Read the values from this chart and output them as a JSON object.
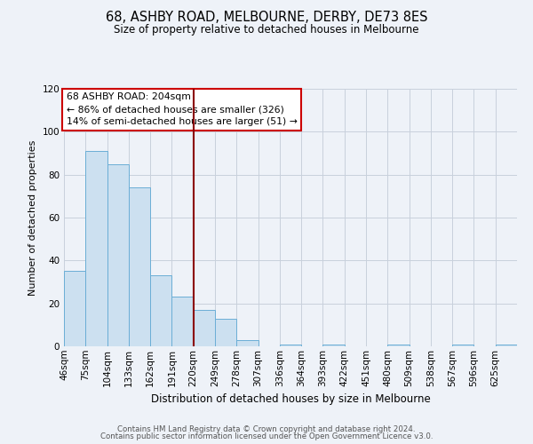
{
  "title": "68, ASHBY ROAD, MELBOURNE, DERBY, DE73 8ES",
  "subtitle": "Size of property relative to detached houses in Melbourne",
  "xlabel": "Distribution of detached houses by size in Melbourne",
  "ylabel": "Number of detached properties",
  "bin_labels": [
    "46sqm",
    "75sqm",
    "104sqm",
    "133sqm",
    "162sqm",
    "191sqm",
    "220sqm",
    "249sqm",
    "278sqm",
    "307sqm",
    "336sqm",
    "364sqm",
    "393sqm",
    "422sqm",
    "451sqm",
    "480sqm",
    "509sqm",
    "538sqm",
    "567sqm",
    "596sqm",
    "625sqm"
  ],
  "bar_values": [
    35,
    91,
    85,
    74,
    33,
    23,
    17,
    13,
    3,
    0,
    1,
    0,
    1,
    0,
    0,
    1,
    0,
    0,
    1,
    0,
    1
  ],
  "bar_color": "#cce0f0",
  "bar_edge_color": "#6baed6",
  "vline_bin": 6,
  "vline_color": "#8b0000",
  "annotation_title": "68 ASHBY ROAD: 204sqm",
  "annotation_line1": "← 86% of detached houses are smaller (326)",
  "annotation_line2": "14% of semi-detached houses are larger (51) →",
  "annotation_box_color": "#ffffff",
  "annotation_box_edge": "#cc0000",
  "ylim": [
    0,
    120
  ],
  "yticks": [
    0,
    20,
    40,
    60,
    80,
    100,
    120
  ],
  "footer_line1": "Contains HM Land Registry data © Crown copyright and database right 2024.",
  "footer_line2": "Contains public sector information licensed under the Open Government Licence v3.0.",
  "background_color": "#eef2f8",
  "grid_color": "#c8d0dc"
}
